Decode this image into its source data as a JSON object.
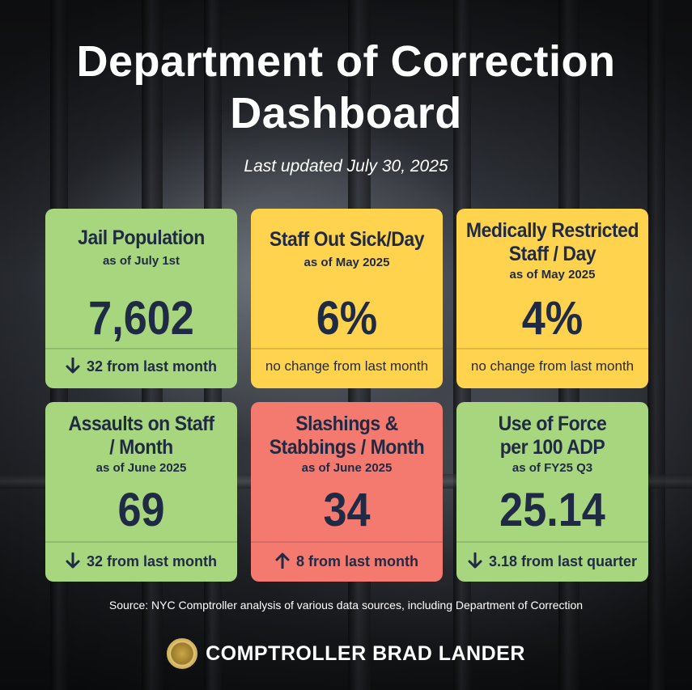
{
  "header": {
    "title_line1": "Department of Correction",
    "title_line2": "Dashboard",
    "subtitle": "Last updated July 30, 2025"
  },
  "cards": [
    {
      "title_line1": "Jail Population",
      "title_line2": "",
      "sub": "as of July 1st",
      "value": "7,602",
      "footer": "32 from last month",
      "trend": "down",
      "color": "#a8d67e"
    },
    {
      "title_line1": "Staff Out Sick/Day",
      "title_line2": "",
      "sub": "as of May 2025",
      "value": "6%",
      "footer": "no change from last month",
      "trend": "none",
      "color": "#ffd34d"
    },
    {
      "title_line1": "Medically Restricted",
      "title_line2": "Staff / Day",
      "sub": "as of May 2025",
      "value": "4%",
      "footer": "no change from last month",
      "trend": "none",
      "color": "#ffd34d"
    },
    {
      "title_line1": "Assaults on Staff",
      "title_line2": "/ Month",
      "sub": "as of June 2025",
      "value": "69",
      "footer": "32 from last month",
      "trend": "down",
      "color": "#a8d67e"
    },
    {
      "title_line1": "Slashings &",
      "title_line2": "Stabbings / Month",
      "sub": "as of June 2025",
      "value": "34",
      "footer": "8 from last month",
      "trend": "up",
      "color": "#f47a70"
    },
    {
      "title_line1": "Use of Force",
      "title_line2": "per 100 ADP",
      "sub": "as of FY25 Q3",
      "value": "25.14",
      "footer": "3.18 from last quarter",
      "trend": "down",
      "color": "#a8d67e"
    }
  ],
  "source": "Source: NYC Comptroller analysis of various data sources, including Department of Correction",
  "brand": {
    "name": "COMPTROLLER BRAD LANDER",
    "seal_icon": "nyc-seal-icon"
  }
}
